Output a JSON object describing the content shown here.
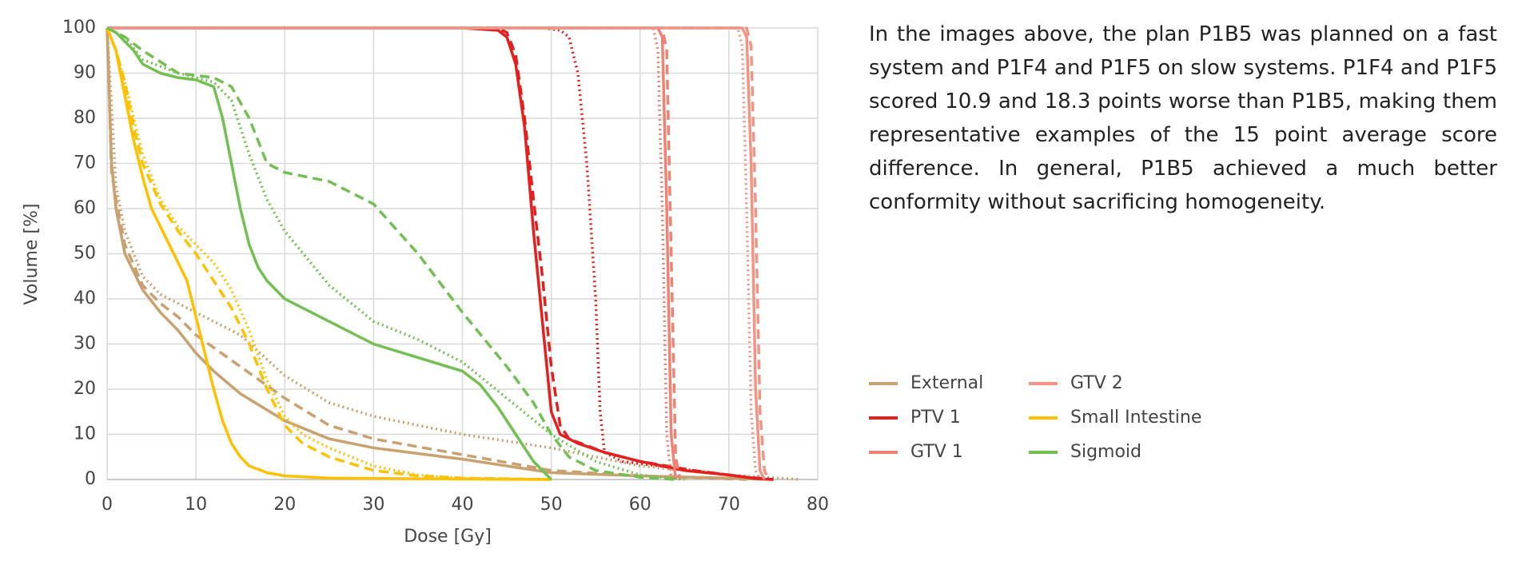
{
  "chart_data": {
    "type": "line",
    "xlabel": "Dose [Gy]",
    "ylabel": "Volume [%]",
    "xlim": [
      0,
      80
    ],
    "ylim": [
      0,
      100
    ],
    "xticks": [
      0,
      10,
      20,
      30,
      40,
      50,
      60,
      70,
      80
    ],
    "yticks": [
      0,
      10,
      20,
      30,
      40,
      50,
      60,
      70,
      80,
      90,
      100
    ],
    "grid": true,
    "legend": "right",
    "series": [
      {
        "name": "External",
        "color": "#c9a06e",
        "lines": [
          {
            "style": "solid",
            "x": [
              0,
              0.5,
              1,
              2,
              4,
              6,
              8,
              10,
              12,
              15,
              20,
              25,
              30,
              40,
              45,
              50,
              60,
              70,
              75
            ],
            "values": [
              100,
              70,
              60,
              50,
              42,
              37,
              33,
              28,
              24,
              19,
              13,
              9,
              7,
              4.5,
              3,
              1.5,
              0.8,
              0.3,
              0
            ]
          },
          {
            "style": "dashed",
            "x": [
              0,
              0.5,
              1,
              2,
              4,
              6,
              8,
              10,
              15,
              20,
              25,
              30,
              40,
              50,
              60,
              72
            ],
            "values": [
              100,
              68,
              62,
              52,
              43,
              39,
              36,
              32,
              25,
              18,
              12,
              9,
              5.5,
              2,
              0.8,
              0
            ]
          },
          {
            "style": "dotted",
            "x": [
              0,
              1,
              2,
              4,
              6,
              10,
              15,
              20,
              25,
              30,
              40,
              50,
              60,
              70,
              78
            ],
            "values": [
              100,
              65,
              55,
              45,
              41,
              37,
              32,
              23,
              17,
              14,
              10,
              7,
              3,
              1,
              0
            ]
          }
        ]
      },
      {
        "name": "PTV 1",
        "color": "#e3201e",
        "lines": [
          {
            "style": "solid",
            "x": [
              0,
              40,
              44,
              45,
              46,
              47,
              48,
              49,
              50,
              51,
              53,
              56,
              60,
              65,
              70,
              73,
              75
            ],
            "values": [
              100,
              100,
              99.5,
              98,
              92,
              78,
              55,
              35,
              15,
              10,
              8,
              6,
              4,
              2,
              1,
              0.2,
              0
            ]
          },
          {
            "style": "dashed",
            "x": [
              0,
              44,
              45,
              46,
              47,
              48,
              49,
              50,
              51,
              52,
              56,
              60,
              66,
              72,
              75
            ],
            "values": [
              100,
              100,
              99,
              94,
              80,
              62,
              45,
              25,
              12,
              9,
              6,
              4,
              2,
              0.5,
              0
            ]
          },
          {
            "style": "dotted",
            "x": [
              0,
              49,
              51,
              52,
              53,
              54,
              55,
              55.5,
              56,
              58,
              62,
              66,
              70,
              74
            ],
            "values": [
              100,
              100,
              99.5,
              98,
              90,
              70,
              40,
              15,
              6,
              4,
              3,
              2,
              1,
              0
            ]
          }
        ]
      },
      {
        "name": "GTV 1",
        "color": "#ef8272",
        "lines": [
          {
            "style": "solid",
            "x": [
              0,
              62,
              62.5,
              63,
              63.5,
              64
            ],
            "values": [
              100,
              100,
              98,
              60,
              10,
              0
            ]
          },
          {
            "style": "dashed",
            "x": [
              0,
              62.5,
              63,
              63.5,
              64,
              64.5
            ],
            "values": [
              100,
              100,
              95,
              50,
              5,
              0
            ]
          },
          {
            "style": "dotted",
            "x": [
              0,
              61.5,
              62,
              62.5,
              63,
              63.5
            ],
            "values": [
              100,
              100,
              95,
              60,
              10,
              0
            ]
          }
        ]
      },
      {
        "name": "GTV 2",
        "color": "#f29484",
        "lines": [
          {
            "style": "solid",
            "x": [
              0,
              71.5,
              72,
              72.5,
              73,
              73.5,
              74
            ],
            "values": [
              100,
              100,
              98,
              70,
              20,
              2,
              0
            ]
          },
          {
            "style": "dashed",
            "x": [
              0,
              72,
              72.5,
              73,
              73.5,
              74,
              74.5
            ],
            "values": [
              100,
              100,
              96,
              60,
              15,
              2,
              0
            ]
          },
          {
            "style": "dotted",
            "x": [
              0,
              71,
              71.5,
              72,
              72.5,
              73,
              73.5
            ],
            "values": [
              100,
              100,
              96,
              60,
              15,
              2,
              0
            ]
          }
        ]
      },
      {
        "name": "Small Intestine",
        "color": "#ffc000",
        "lines": [
          {
            "style": "solid",
            "x": [
              0,
              1,
              2,
              3,
              4,
              5,
              7,
              9,
              10,
              11,
              12,
              13,
              14,
              15,
              16,
              18,
              20,
              25,
              40,
              50
            ],
            "values": [
              100,
              95,
              85,
              75,
              67,
              60,
              52,
              44,
              36,
              28,
              20,
              13,
              8,
              5,
              3,
              1.5,
              0.8,
              0.3,
              0.1,
              0
            ]
          },
          {
            "style": "dashed",
            "x": [
              0,
              1,
              2,
              3,
              4,
              6,
              8,
              10,
              12,
              14,
              16,
              18,
              20,
              22,
              25,
              30,
              35,
              40,
              50
            ],
            "values": [
              100,
              95,
              88,
              78,
              70,
              61,
              55,
              50,
              44,
              38,
              30,
              20,
              12,
              8,
              5,
              2,
              0.8,
              0.3,
              0
            ]
          },
          {
            "style": "dotted",
            "x": [
              0,
              1,
              2,
              3,
              4,
              6,
              8,
              10,
              12,
              14,
              16,
              18,
              20,
              22,
              25,
              30,
              35,
              40,
              50
            ],
            "values": [
              100,
              95,
              88,
              80,
              72,
              62,
              56,
              52,
              48,
              42,
              33,
              22,
              14,
              10,
              7,
              3,
              1,
              0.3,
              0
            ]
          }
        ]
      },
      {
        "name": "Sigmoid",
        "color": "#72c052",
        "lines": [
          {
            "style": "solid",
            "x": [
              0,
              1,
              2,
              3,
              4,
              6,
              8,
              10,
              12,
              13,
              14,
              15,
              16,
              17,
              18,
              20,
              25,
              30,
              35,
              40,
              42,
              44,
              46,
              48,
              50
            ],
            "values": [
              100,
              99,
              97,
              95,
              92,
              90,
              89,
              88.5,
              87,
              80,
              70,
              60,
              52,
              47,
              44,
              40,
              35,
              30,
              27,
              24,
              21,
              16,
              10,
              4,
              0
            ]
          },
          {
            "style": "dashed",
            "x": [
              0,
              2,
              4,
              8,
              12,
              14,
              16,
              18,
              20,
              25,
              30,
              35,
              40,
              45,
              48,
              50,
              52,
              55,
              60,
              64
            ],
            "values": [
              100,
              98,
              95,
              90,
              89,
              87,
              80,
              70,
              68,
              66,
              61,
              50,
              37,
              25,
              17,
              10,
              5,
              2,
              0.5,
              0
            ]
          },
          {
            "style": "dotted",
            "x": [
              0,
              2,
              4,
              8,
              12,
              14,
              16,
              18,
              20,
              25,
              30,
              35,
              40,
              45,
              50,
              55,
              60,
              65
            ],
            "values": [
              100,
              98,
              93,
              90,
              88,
              84,
              72,
              62,
              55,
              43,
              35,
              31,
              26,
              18,
              10,
              4,
              1,
              0
            ]
          }
        ]
      }
    ]
  },
  "caption": "In the images above, the plan P1B5 was planned on a fast system and P1F4 and P1F5 on slow systems. P1F4 and P1F5 scored 10.9 and 18.3 points worse than P1B5, making them representative examples of the 15 point average score difference. In general, P1B5 achieved a much better conformity without sacrificing homogeneity."
}
